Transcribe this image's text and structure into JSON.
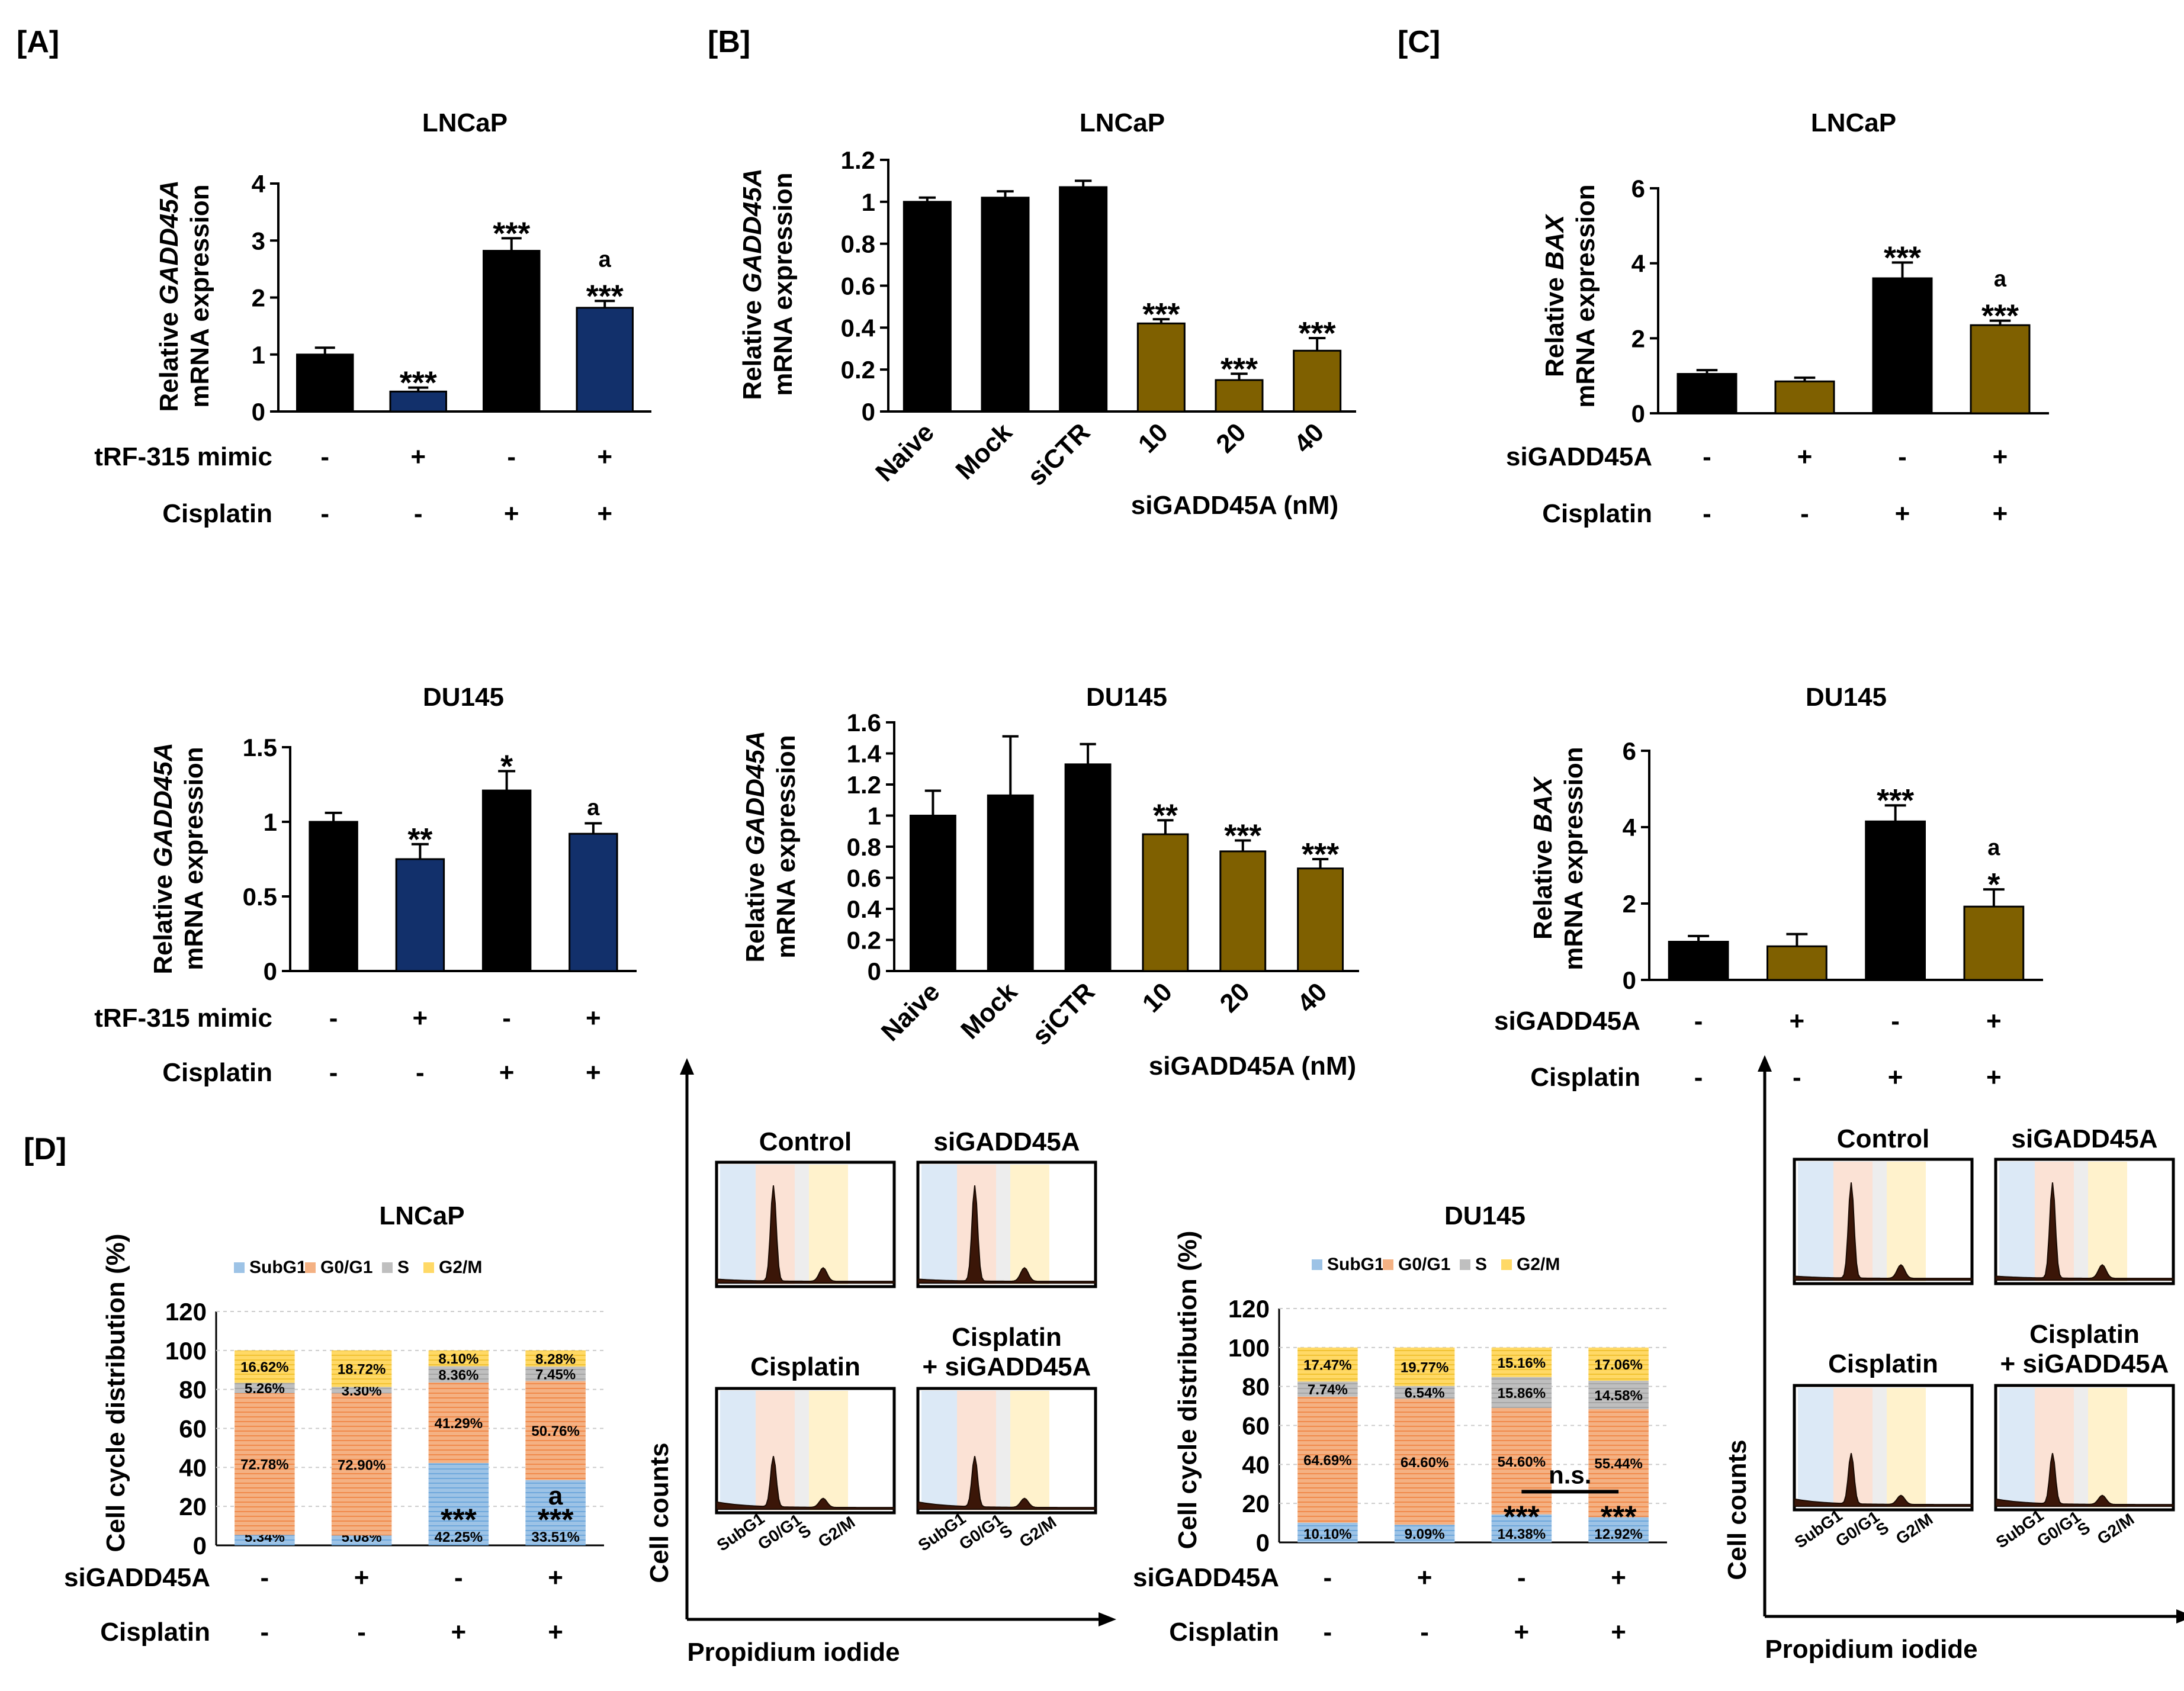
{
  "colors": {
    "black": "#000000",
    "navy": "#12306b",
    "olive": "#7f6000",
    "subg1": "#9dc3e6",
    "g0g1": "#f4b183",
    "s": "#bfbfbf",
    "g2m": "#ffd966",
    "shadeSubG1": "#dce9f6",
    "shadeG0": "#fbe2d5",
    "shadeS": "#ededed",
    "shadeG2": "#fff2cc"
  },
  "panels": {
    "A": "[A]",
    "B": "[B]",
    "C": "[C]",
    "D": "[D]"
  },
  "sig": {
    "s1": "*",
    "s2": "**",
    "s3": "***",
    "a": "a",
    "ns": "n.s."
  },
  "rows": {
    "tRF": "tRF-315 mimic",
    "cis": "Cisplatin",
    "siG": "siGADD45A",
    "siGnm": "siGADD45A (nM)",
    "minus": "-",
    "plus": "+"
  },
  "ylabels": {
    "gaddPre": "Relative ",
    "gaddGene": "GADD45A",
    "baxGene": "BAX",
    "mrna": "mRNA expression",
    "ccd": "Cell cycle distribution (%)"
  },
  "flow": {
    "control": "Control",
    "siG": "siGADD45A",
    "cis": "Cisplatin",
    "combo1": "Cisplatin",
    "combo2": "+ siGADD45A",
    "cellCounts": "Cell counts",
    "pi": "Propidium iodide",
    "phases": [
      "SubG1",
      "G0/G1",
      "S",
      "G2/M"
    ]
  },
  "chart_data": [
    {
      "id": "A1",
      "type": "bar",
      "title": "LNCaP",
      "ylabel": "Relative GADD45A mRNA expression",
      "ylim": [
        0,
        4
      ],
      "yticks": [
        "0",
        "1",
        "2",
        "3",
        "4"
      ],
      "values": [
        1.0,
        0.35,
        2.82,
        1.82
      ],
      "errors": [
        0.12,
        0.07,
        0.22,
        0.12
      ],
      "colors": [
        "black",
        "navy",
        "black",
        "navy"
      ],
      "sig": [
        [],
        [
          "***"
        ],
        [
          "***"
        ],
        [
          "***",
          "a"
        ]
      ],
      "rows": [
        {
          "label": "tRF-315 mimic",
          "signs": [
            "-",
            "+",
            "-",
            "+"
          ]
        },
        {
          "label": "Cisplatin",
          "signs": [
            "-",
            "-",
            "+",
            "+"
          ]
        }
      ]
    },
    {
      "id": "A2",
      "type": "bar",
      "title": "DU145",
      "ylabel": "Relative GADD45A mRNA expression",
      "ylim": [
        0,
        1.5
      ],
      "yticks": [
        "0",
        "0.5",
        "1",
        "1.5"
      ],
      "values": [
        1.0,
        0.75,
        1.21,
        0.92
      ],
      "errors": [
        0.06,
        0.1,
        0.13,
        0.07
      ],
      "colors": [
        "black",
        "navy",
        "black",
        "navy"
      ],
      "sig": [
        [],
        [
          "**"
        ],
        [
          "*"
        ],
        [
          "a"
        ]
      ],
      "rows": [
        {
          "label": "tRF-315 mimic",
          "signs": [
            "-",
            "+",
            "-",
            "+"
          ]
        },
        {
          "label": "Cisplatin",
          "signs": [
            "-",
            "-",
            "+",
            "+"
          ]
        }
      ]
    },
    {
      "id": "B1",
      "type": "bar",
      "title": "LNCaP",
      "ylabel": "Relative GADD45A mRNA expression",
      "ylim": [
        0,
        1.2
      ],
      "yticks": [
        "0",
        "0.2",
        "0.4",
        "0.6",
        "0.8",
        "1",
        "1.2"
      ],
      "categories": [
        "Naive",
        "Mock",
        "siCTR",
        "10",
        "20",
        "40"
      ],
      "values": [
        1.0,
        1.02,
        1.07,
        0.42,
        0.15,
        0.29
      ],
      "errors": [
        0.02,
        0.03,
        0.03,
        0.02,
        0.03,
        0.06
      ],
      "colors": [
        "black",
        "black",
        "black",
        "olive",
        "olive",
        "olive"
      ],
      "sig": [
        [],
        [],
        [],
        [
          "***"
        ],
        [
          "***"
        ],
        [
          "***"
        ]
      ],
      "group_label": "siGADD45A (nM)"
    },
    {
      "id": "B2",
      "type": "bar",
      "title": "DU145",
      "ylabel": "Relative GADD45A mRNA expression",
      "ylim": [
        0,
        1.6
      ],
      "yticks": [
        "0",
        "0.2",
        "0.4",
        "0.6",
        "0.8",
        "1",
        "1.2",
        "1.4",
        "1.6"
      ],
      "categories": [
        "Naive",
        "Mock",
        "siCTR",
        "10",
        "20",
        "40"
      ],
      "values": [
        1.0,
        1.13,
        1.33,
        0.88,
        0.77,
        0.66
      ],
      "errors": [
        0.16,
        0.38,
        0.13,
        0.09,
        0.07,
        0.06
      ],
      "colors": [
        "black",
        "black",
        "black",
        "olive",
        "olive",
        "olive"
      ],
      "sig": [
        [],
        [],
        [],
        [
          "**"
        ],
        [
          "***"
        ],
        [
          "***"
        ]
      ],
      "group_label": "siGADD45A (nM)"
    },
    {
      "id": "C1",
      "type": "bar",
      "title": "LNCaP",
      "ylabel": "Relative BAX mRNA expression",
      "ylim": [
        0,
        6
      ],
      "yticks": [
        "0",
        "2",
        "4",
        "6"
      ],
      "values": [
        1.05,
        0.85,
        3.6,
        2.35
      ],
      "errors": [
        0.1,
        0.1,
        0.42,
        0.12
      ],
      "colors": [
        "black",
        "olive",
        "black",
        "olive"
      ],
      "sig": [
        [],
        [],
        [
          "***"
        ],
        [
          "***",
          "a"
        ]
      ],
      "rows": [
        {
          "label": "siGADD45A",
          "signs": [
            "-",
            "+",
            "-",
            "+"
          ]
        },
        {
          "label": "Cisplatin",
          "signs": [
            "-",
            "-",
            "+",
            "+"
          ]
        }
      ]
    },
    {
      "id": "C2",
      "type": "bar",
      "title": "DU145",
      "ylabel": "Relative BAX mRNA expression",
      "ylim": [
        0,
        6
      ],
      "yticks": [
        "0",
        "2",
        "4",
        "6"
      ],
      "values": [
        1.0,
        0.88,
        4.15,
        1.92
      ],
      "errors": [
        0.15,
        0.32,
        0.42,
        0.45
      ],
      "colors": [
        "black",
        "olive",
        "black",
        "olive"
      ],
      "sig": [
        [],
        [],
        [
          "***"
        ],
        [
          "*",
          "a"
        ]
      ],
      "rows": [
        {
          "label": "siGADD45A",
          "signs": [
            "-",
            "+",
            "-",
            "+"
          ]
        },
        {
          "label": "Cisplatin",
          "signs": [
            "-",
            "-",
            "+",
            "+"
          ]
        }
      ]
    },
    {
      "id": "D1",
      "type": "bar",
      "stacked": true,
      "title": "LNCaP",
      "ylabel": "Cell cycle distribution (%)",
      "ylim": [
        0,
        120
      ],
      "yticks": [
        "0",
        "20",
        "40",
        "60",
        "80",
        "100",
        "120"
      ],
      "legend": [
        "SubG1",
        "G0/G1",
        "S",
        "G2/M"
      ],
      "series": [
        {
          "name": "SubG1",
          "values": [
            5.34,
            5.08,
            42.25,
            33.51
          ],
          "labels": [
            "5.34%",
            "5.08%",
            "42.25%",
            "33.51%"
          ]
        },
        {
          "name": "G0/G1",
          "values": [
            72.78,
            72.9,
            41.29,
            50.76
          ],
          "labels": [
            "72.78%",
            "72.90%",
            "41.29%",
            "50.76%"
          ]
        },
        {
          "name": "S",
          "values": [
            5.26,
            3.3,
            8.36,
            7.45
          ],
          "labels": [
            "5.26%",
            "3.30%",
            "8.36%",
            "7.45%"
          ]
        },
        {
          "name": "G2/M",
          "values": [
            16.62,
            18.72,
            8.1,
            8.28
          ],
          "labels": [
            "16.62%",
            "18.72%",
            "8.10%",
            "8.28%"
          ]
        }
      ],
      "sig": [
        [],
        [],
        [
          "***"
        ],
        [
          "***",
          "a"
        ]
      ],
      "rows": [
        {
          "label": "siGADD45A",
          "signs": [
            "-",
            "+",
            "-",
            "+"
          ]
        },
        {
          "label": "Cisplatin",
          "signs": [
            "-",
            "-",
            "+",
            "+"
          ]
        }
      ]
    },
    {
      "id": "D2",
      "type": "bar",
      "stacked": true,
      "title": "DU145",
      "ylabel": "Cell cycle distribution (%)",
      "ylim": [
        0,
        120
      ],
      "yticks": [
        "0",
        "20",
        "40",
        "60",
        "80",
        "100",
        "120"
      ],
      "legend": [
        "SubG1",
        "G0/G1",
        "S",
        "G2/M"
      ],
      "series": [
        {
          "name": "SubG1",
          "values": [
            10.1,
            9.09,
            14.38,
            12.92
          ],
          "labels": [
            "10.10%",
            "9.09%",
            "14.38%",
            "12.92%"
          ]
        },
        {
          "name": "G0/G1",
          "values": [
            64.69,
            64.6,
            54.6,
            55.44
          ],
          "labels": [
            "64.69%",
            "64.60%",
            "54.60%",
            "55.44%"
          ]
        },
        {
          "name": "S",
          "values": [
            7.74,
            6.54,
            15.86,
            14.58
          ],
          "labels": [
            "7.74%",
            "6.54%",
            "15.86%",
            "14.58%"
          ]
        },
        {
          "name": "G2/M",
          "values": [
            17.47,
            19.77,
            15.16,
            17.06
          ],
          "labels": [
            "17.47%",
            "19.77%",
            "15.16%",
            "17.06%"
          ]
        }
      ],
      "sig": [
        [],
        [],
        [
          "***"
        ],
        [
          "***"
        ]
      ],
      "bracket": "n.s.",
      "rows": [
        {
          "label": "siGADD45A",
          "signs": [
            "-",
            "+",
            "-",
            "+"
          ]
        },
        {
          "label": "Cisplatin",
          "signs": [
            "-",
            "-",
            "+",
            "+"
          ]
        }
      ]
    }
  ]
}
